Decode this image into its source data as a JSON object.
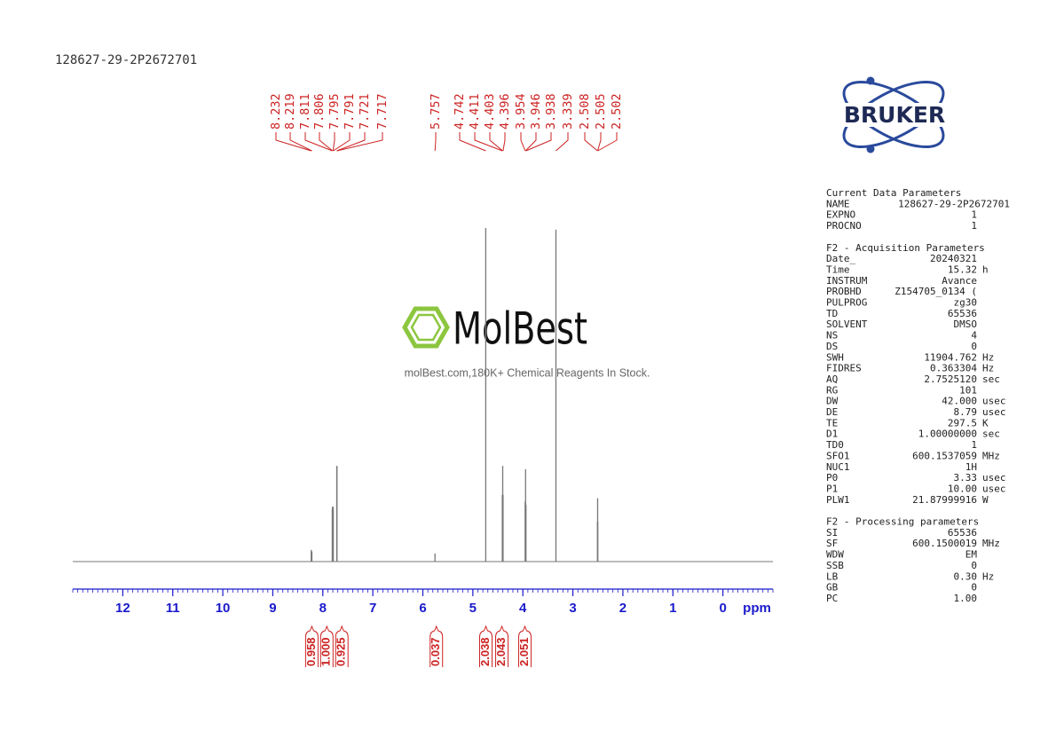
{
  "chart_data": {
    "type": "nmr",
    "title": "128627-29-2P2672701",
    "xlabel": "ppm",
    "x": [
      8.232,
      8.219,
      7.811,
      7.806,
      7.795,
      7.791,
      7.721,
      7.717,
      5.757,
      4.742,
      4.411,
      4.403,
      4.396,
      3.954,
      3.946,
      3.938,
      3.339,
      2.508,
      2.505,
      2.502
    ],
    "values": [
      3.5,
      3.0,
      15.8,
      16.4,
      16.5,
      15.5,
      28.7,
      28.5,
      2.4,
      100,
      20,
      28.7,
      20,
      18,
      27.7,
      17,
      99.5,
      12,
      19,
      12
    ],
    "color": "#777777",
    "label_color": "#cc2222",
    "xlim": [
      13,
      -1
    ],
    "xticks": [
      12,
      11,
      10,
      9,
      8,
      7,
      6,
      5,
      4,
      3,
      2,
      1,
      0
    ],
    "xminor": 0.1,
    "ylim": [
      0,
      100
    ],
    "axis_color": "#1a1acc",
    "integrals": {
      "x": [
        8.22,
        7.92,
        7.62,
        5.73,
        4.74,
        4.42,
        3.96
      ],
      "values": [
        0.958,
        1,
        0.925,
        0.037,
        2.038,
        2.043,
        2.051
      ],
      "value_labels": [
        "0.958",
        "1.000",
        "0.925",
        "0.037",
        "2.038",
        "2.043",
        "2.051"
      ]
    }
  },
  "logos": {
    "bruker": "BRUKER",
    "watermark": "MolBest",
    "watermark_tagline": "molBest.com,180K+ Chemical Reagents In Stock."
  },
  "parameters": [
    {
      "heading": "Current Data Parameters",
      "rows": [
        [
          "NAME",
          "128627-29-2P2672701"
        ],
        [
          "EXPNO",
          "1"
        ],
        [
          "PROCNO",
          "1"
        ]
      ]
    },
    {
      "heading": "F2 - Acquisition Parameters",
      "rows": [
        [
          "Date_",
          "20240321"
        ],
        [
          "Time",
          "15.32",
          "h"
        ],
        [
          "INSTRUM",
          "Avance"
        ],
        [
          "PROBHD",
          "Z154705_0134 ("
        ],
        [
          "PULPROG",
          "zg30"
        ],
        [
          "TD",
          "65536"
        ],
        [
          "SOLVENT",
          "DMSO"
        ],
        [
          "NS",
          "4"
        ],
        [
          "DS",
          "0"
        ],
        [
          "SWH",
          "11904.762",
          "Hz"
        ],
        [
          "FIDRES",
          "0.363304",
          "Hz"
        ],
        [
          "AQ",
          "2.7525120",
          "sec"
        ],
        [
          "RG",
          "101"
        ],
        [
          "DW",
          "42.000",
          "usec"
        ],
        [
          "DE",
          "8.79",
          "usec"
        ],
        [
          "TE",
          "297.5",
          "K"
        ],
        [
          "D1",
          "1.00000000",
          "sec"
        ],
        [
          "TD0",
          "1"
        ],
        [
          "SFO1",
          "600.1537059",
          "MHz"
        ],
        [
          "NUC1",
          "1H"
        ],
        [
          "P0",
          "3.33",
          "usec"
        ],
        [
          "P1",
          "10.00",
          "usec"
        ],
        [
          "PLW1",
          "21.87999916",
          "W"
        ]
      ]
    },
    {
      "heading": "F2 - Processing parameters",
      "rows": [
        [
          "SI",
          "65536"
        ],
        [
          "SF",
          "600.1500019",
          "MHz"
        ],
        [
          "WDW",
          "EM"
        ],
        [
          "SSB",
          "0"
        ],
        [
          "LB",
          "0.30",
          "Hz"
        ],
        [
          "GB",
          "0"
        ],
        [
          "PC",
          "1.00"
        ]
      ]
    }
  ]
}
